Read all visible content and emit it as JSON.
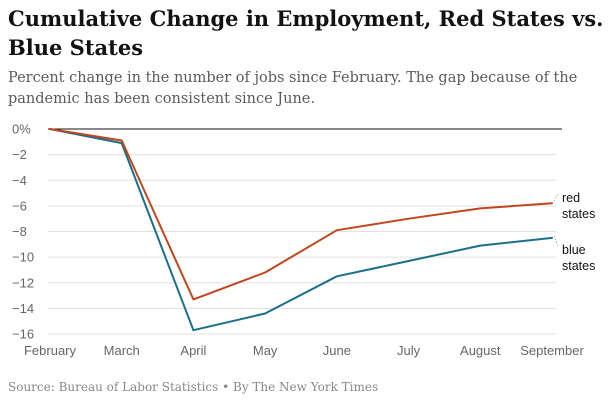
{
  "title": "Cumulative Change in Employment, Red States vs. Blue States",
  "subtitle": "Percent change in the number of jobs since February. The gap because of the pandemic has been consistent since June.",
  "source": "Source: Bureau of Labor Statistics • By The New York Times",
  "colors": {
    "red": "#c0461b",
    "blue": "#1a6f8a",
    "grid": "#e0e0e0",
    "zero": "#121212",
    "axis_text": "#666666"
  },
  "chart_data": {
    "type": "line",
    "title": "Cumulative Change in Employment, Red States vs. Blue States",
    "xlabel": "",
    "ylabel": "",
    "categories": [
      "February",
      "March",
      "April",
      "May",
      "June",
      "July",
      "August",
      "September"
    ],
    "ylim": [
      -16,
      0
    ],
    "yticks": [
      0,
      -2,
      -4,
      -6,
      -8,
      -10,
      -12,
      -14,
      -16
    ],
    "ytick_labels": [
      "0%",
      "−2",
      "−4",
      "−6",
      "−8",
      "−10",
      "−12",
      "−14",
      "−16"
    ],
    "grid": true,
    "series": [
      {
        "name": "red states",
        "label_lines": [
          "red",
          "states"
        ],
        "color": "#c0461b",
        "values": [
          0,
          -0.9,
          -13.3,
          -11.2,
          -7.9,
          -7.0,
          -6.2,
          -5.8
        ]
      },
      {
        "name": "blue states",
        "label_lines": [
          "blue",
          "states"
        ],
        "color": "#1a6f8a",
        "values": [
          0,
          -1.1,
          -15.7,
          -14.4,
          -11.5,
          -10.3,
          -9.1,
          -8.5
        ]
      }
    ]
  }
}
